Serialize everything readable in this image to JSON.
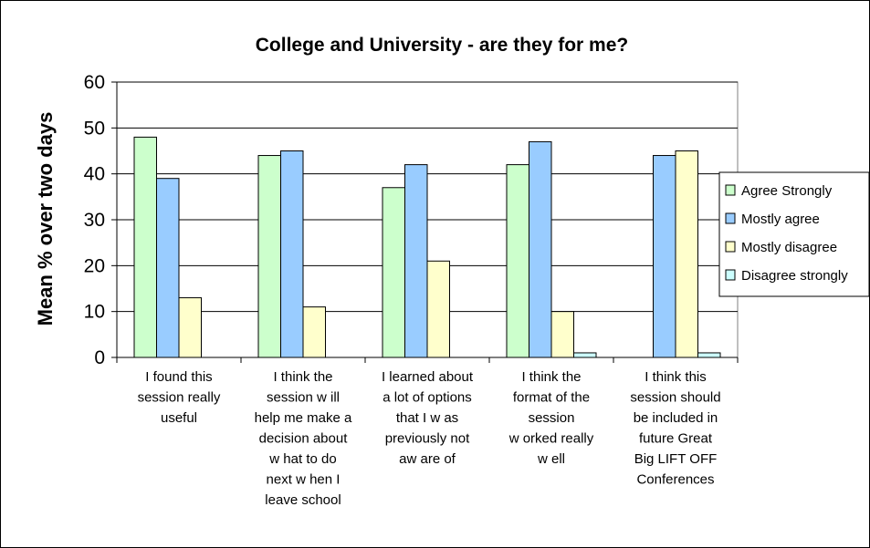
{
  "chart_data": {
    "type": "bar",
    "title": "College and University - are they for me?",
    "ylabel": "Mean % over two days",
    "xlabel": "",
    "ylim": [
      0,
      60
    ],
    "yticks": [
      0,
      10,
      20,
      30,
      40,
      50,
      60
    ],
    "grid": true,
    "legend_position": "right",
    "categories": [
      [
        "I found this",
        "session really",
        "useful"
      ],
      [
        "I think the",
        "session w ill",
        "help me make a",
        "decision about",
        "w hat to do",
        "next w hen I",
        "leave school"
      ],
      [
        "I learned about",
        "a lot of options",
        "that I w as",
        "previously not",
        "aw are of"
      ],
      [
        "I think the",
        "format of the",
        "session",
        "w orked really",
        "w ell"
      ],
      [
        "I think this",
        "session should",
        "be included in",
        "future Great",
        "Big LIFT OFF",
        "Conferences"
      ]
    ],
    "series": [
      {
        "name": "Agree Strongly",
        "color": "#ccffcc",
        "values": [
          48,
          44,
          37,
          42,
          0
        ]
      },
      {
        "name": "Mostly agree",
        "color": "#99ccff",
        "values": [
          39,
          45,
          42,
          47,
          44
        ]
      },
      {
        "name": "Mostly disagree",
        "color": "#ffffcc",
        "values": [
          13,
          11,
          21,
          10,
          45
        ]
      },
      {
        "name": "Disagree strongly",
        "color": "#ccffff",
        "values": [
          0,
          0,
          0,
          1,
          1
        ]
      }
    ]
  }
}
